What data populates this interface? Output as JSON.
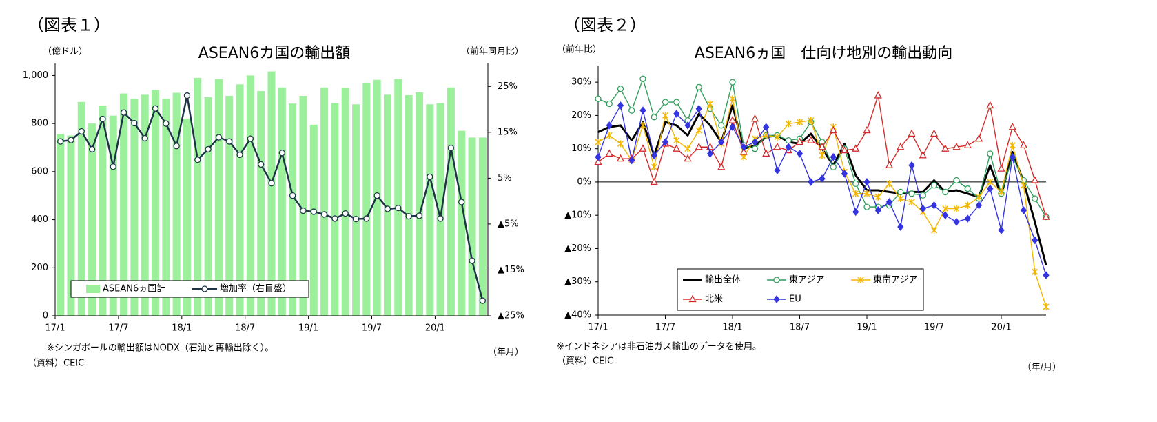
{
  "chart_data": [
    {
      "type": "bar",
      "label": "（図表１）",
      "title": "ASEAN6カ国の輸出額",
      "y_label": "（億ドル）",
      "y2_label": "（前年同月比）",
      "x_label": "（年月）",
      "note": "※シンガポールの輸出額はNODX（石油と再輸出除く）。",
      "source": "（資料）CEIC",
      "categories": [
        "17/1",
        null,
        null,
        null,
        null,
        null,
        "17/7",
        null,
        null,
        null,
        null,
        null,
        "18/1",
        null,
        null,
        null,
        null,
        null,
        "18/7",
        null,
        null,
        null,
        null,
        null,
        "19/1",
        null,
        null,
        null,
        null,
        null,
        "19/7",
        null,
        null,
        null,
        null,
        null,
        "20/1",
        null,
        null,
        null,
        null
      ],
      "series": [
        {
          "name": "ASEAN6ヵ国計",
          "type": "bar",
          "color": "#9cf09c",
          "values": [
            756,
            750,
            890,
            800,
            875,
            833,
            925,
            903,
            920,
            940,
            903,
            928,
            820,
            990,
            910,
            985,
            915,
            963,
            1000,
            935,
            1017,
            950,
            883,
            915,
            795,
            950,
            885,
            948,
            880,
            970,
            982,
            920,
            985,
            918,
            930,
            880,
            885,
            950,
            770,
            742,
            742
          ]
        },
        {
          "name": "増加率（右目盛）",
          "type": "line",
          "axis": "y2",
          "color": "#1c3446",
          "values": [
            13.0,
            13.3,
            15.2,
            11.3,
            17.9,
            7.5,
            19.3,
            17.0,
            13.7,
            20.2,
            16.9,
            12.0,
            23.0,
            9.0,
            11.3,
            13.9,
            13.0,
            10.1,
            13.6,
            8.0,
            3.9,
            10.5,
            1.2,
            -2.1,
            -2.3,
            -2.9,
            -3.8,
            -2.7,
            -3.9,
            -3.8,
            1.2,
            -1.7,
            -1.5,
            -3.3,
            -3.2,
            5.3,
            -3.8,
            11.6,
            -0.2,
            -13.0,
            -21.7
          ]
        }
      ],
      "ylim": [
        0,
        1050
      ],
      "yticks": [
        0,
        200,
        400,
        600,
        800,
        {
          "value": 1000,
          "label": "1,000"
        }
      ],
      "y2lim": [
        -25,
        30
      ],
      "y2ticks": [
        {
          "value": 25,
          "label": "25%"
        },
        {
          "value": 15,
          "label": "15%"
        },
        {
          "value": 5,
          "label": "5%"
        },
        {
          "value": -5,
          "label": "▲5%"
        },
        {
          "value": -15,
          "label": "▲15%"
        },
        {
          "value": -25,
          "label": "▲25%"
        }
      ],
      "grid": false,
      "legend": "lower left"
    },
    {
      "type": "line",
      "label": "（図表２）",
      "title": "ASEAN6ヵ国　仕向け地別の輸出動向",
      "y_label": "（前年比）",
      "x_label": "（年/月）",
      "note": "※インドネシアは非石油ガス輸出のデータを使用。",
      "source": "（資料）CEIC",
      "categories": [
        "17/1",
        null,
        null,
        null,
        null,
        null,
        "17/7",
        null,
        null,
        null,
        null,
        null,
        "18/1",
        null,
        null,
        null,
        null,
        null,
        "18/7",
        null,
        null,
        null,
        null,
        null,
        "19/1",
        null,
        null,
        null,
        null,
        null,
        "19/7",
        null,
        null,
        null,
        null,
        null,
        "20/1",
        null,
        null,
        null,
        null
      ],
      "series": [
        {
          "name": "輸出全体",
          "color": "#000000",
          "marker": "none",
          "values": [
            15,
            16.5,
            17,
            12.5,
            18,
            8,
            18,
            17,
            14,
            20.5,
            17,
            12,
            23,
            10,
            11,
            13.5,
            14,
            12,
            11.5,
            14.5,
            10,
            5,
            11.5,
            2,
            -2.5,
            -2.5,
            -3,
            -3.5,
            -3,
            -3,
            0.5,
            -3,
            -2.5,
            -3.5,
            -4.5,
            5,
            -4,
            9,
            0,
            -12,
            -25
          ]
        },
        {
          "name": "東アジア",
          "color": "#2e9e5a",
          "marker": "circle",
          "values": [
            25,
            23.5,
            28,
            21.5,
            31,
            19.5,
            24,
            24,
            18.5,
            28.5,
            22,
            17,
            30,
            11,
            10,
            14,
            14,
            12.5,
            13,
            18,
            12,
            4.5,
            10,
            -0.5,
            -7.5,
            -7.5,
            -7,
            -3,
            -3.5,
            -4,
            -1,
            -3,
            0.5,
            -2,
            -5,
            8.5,
            -3.5,
            7.5,
            0.5,
            -5,
            -10.5
          ]
        },
        {
          "name": "東南アジア",
          "color": "#f2b600",
          "marker": "x",
          "values": [
            12,
            14,
            11.5,
            6.5,
            17,
            4.5,
            20,
            12.5,
            10,
            15.5,
            23.5,
            11.5,
            25,
            7.5,
            13,
            14,
            13.5,
            17.5,
            18,
            18.5,
            8,
            16.5,
            3,
            -3.5,
            -3.5,
            -4.5,
            -0.5,
            -5,
            -6,
            -9,
            -14.5,
            -8,
            -8,
            -7,
            -4.5,
            0,
            -3,
            11,
            -1,
            -27,
            -37.5
          ]
        },
        {
          "name": "北米",
          "color": "#d42a2a",
          "marker": "triangle",
          "values": [
            6,
            8.5,
            7,
            7,
            10,
            0,
            11.5,
            10,
            7,
            10.5,
            10.5,
            4.5,
            18.5,
            9,
            19,
            8.5,
            10.5,
            9.5,
            12,
            12.5,
            10.5,
            15.5,
            9.5,
            10,
            15.5,
            26,
            5,
            10.5,
            14.5,
            8,
            14.5,
            10,
            10.5,
            11,
            13,
            23,
            4,
            16.5,
            11,
            0.5,
            -10.5
          ]
        },
        {
          "name": "EU",
          "color": "#3434e0",
          "marker": "diamond",
          "values": [
            7.5,
            17,
            23,
            6.5,
            21.5,
            8,
            12,
            20.5,
            17,
            22,
            8.5,
            12,
            16.5,
            10.5,
            12,
            16.5,
            3.5,
            10.5,
            8.5,
            0,
            1,
            7.5,
            2.5,
            -9,
            0,
            -8.5,
            -6,
            -13.5,
            5,
            -8,
            -7,
            -10,
            -12,
            -11,
            -7,
            -2,
            -14.5,
            7.5,
            -8.5,
            -17.5,
            -28
          ]
        }
      ],
      "ylim": [
        -40,
        35
      ],
      "yticks": [
        {
          "value": 30,
          "label": "30%"
        },
        {
          "value": 20,
          "label": "20%"
        },
        {
          "value": 10,
          "label": "10%"
        },
        {
          "value": 0,
          "label": "0%"
        },
        {
          "value": -10,
          "label": "▲10%"
        },
        {
          "value": -20,
          "label": "▲20%"
        },
        {
          "value": -30,
          "label": "▲30%"
        },
        {
          "value": -40,
          "label": "▲40%"
        }
      ],
      "grid": false,
      "legend": "lower left"
    }
  ]
}
